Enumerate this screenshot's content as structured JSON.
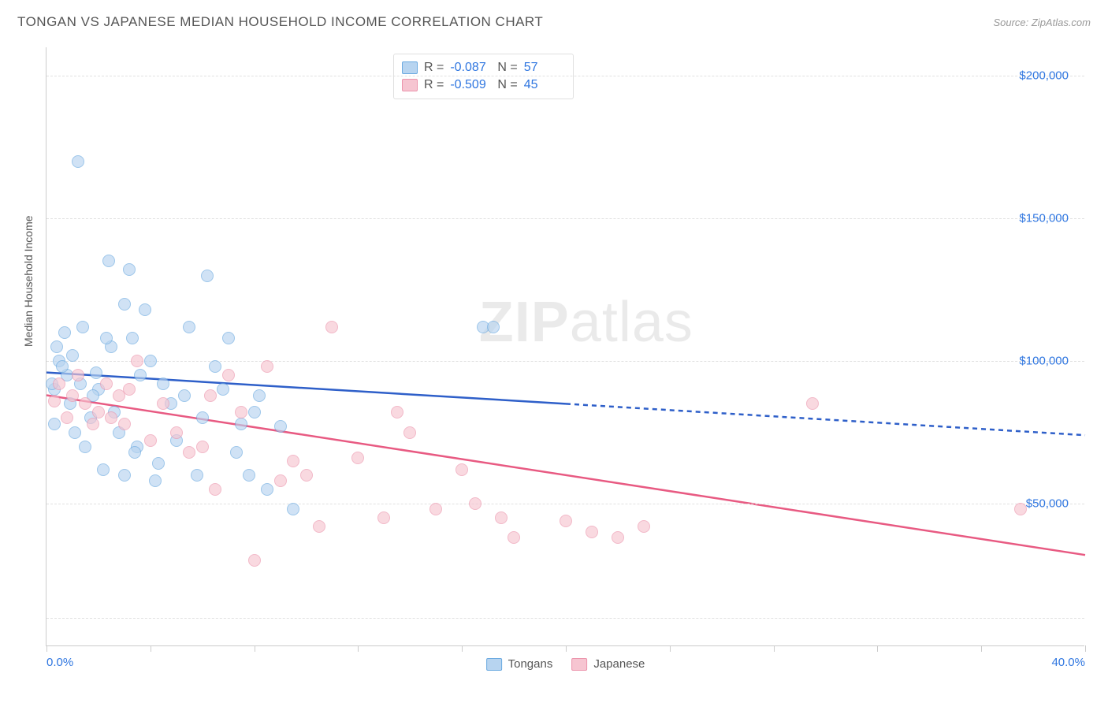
{
  "title": "TONGAN VS JAPANESE MEDIAN HOUSEHOLD INCOME CORRELATION CHART",
  "source_label": "Source: ",
  "source_name": "ZipAtlas.com",
  "ylabel": "Median Household Income",
  "watermark_a": "ZIP",
  "watermark_b": "atlas",
  "chart": {
    "type": "scatter",
    "xlim": [
      0,
      40
    ],
    "ylim": [
      0,
      210000
    ],
    "xtick_positions": [
      0,
      4,
      8,
      12,
      16,
      20,
      24,
      28,
      32,
      36,
      40
    ],
    "xtick_labels_shown": {
      "0": "0.0%",
      "40": "40.0%"
    },
    "ygrid_positions": [
      10000,
      50000,
      100000,
      150000,
      200000
    ],
    "ytick_labels": {
      "50000": "$50,000",
      "100000": "$100,000",
      "150000": "$150,000",
      "200000": "$200,000"
    },
    "background_color": "#ffffff",
    "grid_color": "#e0e0e0",
    "axis_color": "#cccccc",
    "tick_label_color": "#2f76e0",
    "label_fontsize": 14,
    "ticklabel_fontsize": 15,
    "point_diameter": 16,
    "point_opacity": 0.65,
    "series": [
      {
        "name": "Tongans",
        "fill": "#b7d4f0",
        "stroke": "#6aa9e0",
        "trend_color": "#2e5fc9",
        "trend_width": 2.5,
        "r_value": "-0.087",
        "n_value": "57",
        "trend": {
          "x1": 0,
          "y1": 96000,
          "x2": 20,
          "y2": 85000,
          "x3": 40,
          "y3": 74000
        },
        "points": [
          [
            1.2,
            170000
          ],
          [
            0.5,
            100000
          ],
          [
            0.8,
            95000
          ],
          [
            0.3,
            90000
          ],
          [
            1.0,
            102000
          ],
          [
            1.3,
            92000
          ],
          [
            0.6,
            98000
          ],
          [
            2.4,
            135000
          ],
          [
            3.2,
            132000
          ],
          [
            3.0,
            120000
          ],
          [
            3.8,
            118000
          ],
          [
            2.5,
            105000
          ],
          [
            2.0,
            90000
          ],
          [
            3.6,
            95000
          ],
          [
            4.8,
            85000
          ],
          [
            5.5,
            112000
          ],
          [
            6.0,
            80000
          ],
          [
            6.5,
            98000
          ],
          [
            4.2,
            58000
          ],
          [
            3.0,
            60000
          ],
          [
            2.2,
            62000
          ],
          [
            7.0,
            108000
          ],
          [
            7.5,
            78000
          ],
          [
            8.0,
            82000
          ],
          [
            8.5,
            55000
          ],
          [
            9.0,
            77000
          ],
          [
            9.5,
            48000
          ],
          [
            6.2,
            130000
          ],
          [
            5.0,
            72000
          ],
          [
            3.5,
            70000
          ],
          [
            1.5,
            70000
          ],
          [
            2.8,
            75000
          ],
          [
            4.0,
            100000
          ],
          [
            0.9,
            85000
          ],
          [
            1.7,
            80000
          ],
          [
            5.8,
            60000
          ],
          [
            7.8,
            60000
          ],
          [
            8.2,
            88000
          ],
          [
            2.3,
            108000
          ],
          [
            3.3,
            108000
          ],
          [
            4.5,
            92000
          ],
          [
            16.8,
            112000
          ],
          [
            17.2,
            112000
          ],
          [
            0.4,
            105000
          ],
          [
            0.7,
            110000
          ],
          [
            1.1,
            75000
          ],
          [
            1.8,
            88000
          ],
          [
            2.6,
            82000
          ],
          [
            3.4,
            68000
          ],
          [
            4.3,
            64000
          ],
          [
            5.3,
            88000
          ],
          [
            6.8,
            90000
          ],
          [
            7.3,
            68000
          ],
          [
            0.2,
            92000
          ],
          [
            1.4,
            112000
          ],
          [
            0.3,
            78000
          ],
          [
            1.9,
            96000
          ]
        ]
      },
      {
        "name": "Japanese",
        "fill": "#f6c5d1",
        "stroke": "#ec94ac",
        "trend_color": "#e85a82",
        "trend_width": 2.5,
        "r_value": "-0.509",
        "n_value": "45",
        "trend": {
          "x1": 0,
          "y1": 88000,
          "x2": 40,
          "y2": 32000
        },
        "points": [
          [
            0.5,
            92000
          ],
          [
            1.0,
            88000
          ],
          [
            1.5,
            85000
          ],
          [
            2.0,
            82000
          ],
          [
            2.5,
            80000
          ],
          [
            3.0,
            78000
          ],
          [
            3.5,
            100000
          ],
          [
            4.0,
            72000
          ],
          [
            5.0,
            75000
          ],
          [
            6.0,
            70000
          ],
          [
            6.5,
            55000
          ],
          [
            7.0,
            95000
          ],
          [
            7.5,
            82000
          ],
          [
            8.0,
            30000
          ],
          [
            8.5,
            98000
          ],
          [
            9.0,
            58000
          ],
          [
            9.5,
            65000
          ],
          [
            10.0,
            60000
          ],
          [
            10.5,
            42000
          ],
          [
            11.0,
            112000
          ],
          [
            13.5,
            82000
          ],
          [
            13.0,
            45000
          ],
          [
            14.0,
            75000
          ],
          [
            15.0,
            48000
          ],
          [
            16.0,
            62000
          ],
          [
            16.5,
            50000
          ],
          [
            17.5,
            45000
          ],
          [
            18.0,
            38000
          ],
          [
            20.0,
            44000
          ],
          [
            21.0,
            40000
          ],
          [
            22.0,
            38000
          ],
          [
            23.0,
            42000
          ],
          [
            29.5,
            85000
          ],
          [
            37.5,
            48000
          ],
          [
            2.8,
            88000
          ],
          [
            3.2,
            90000
          ],
          [
            4.5,
            85000
          ],
          [
            5.5,
            68000
          ],
          [
            1.2,
            95000
          ],
          [
            1.8,
            78000
          ],
          [
            0.8,
            80000
          ],
          [
            0.3,
            86000
          ],
          [
            2.3,
            92000
          ],
          [
            6.3,
            88000
          ],
          [
            12.0,
            66000
          ]
        ]
      }
    ]
  },
  "legend_top": {
    "r_label": "R =",
    "n_label": "N ="
  },
  "legend_bottom": [
    {
      "label": "Tongans",
      "fill": "#b7d4f0",
      "stroke": "#6aa9e0"
    },
    {
      "label": "Japanese",
      "fill": "#f6c5d1",
      "stroke": "#ec94ac"
    }
  ]
}
